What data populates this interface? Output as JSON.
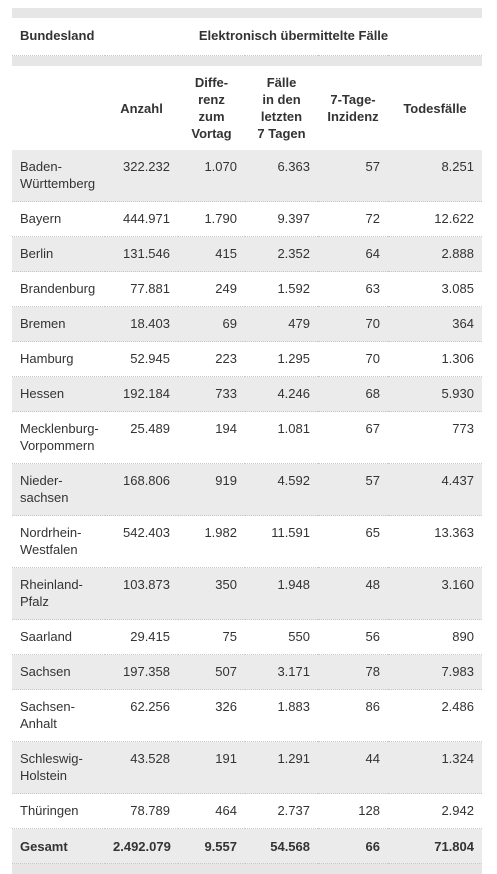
{
  "header": {
    "group_row": [
      "Bundesland",
      "Elektronisch übermittelte Fälle"
    ],
    "columns": [
      "Anzahl",
      "Diffe-\nrenz\nzum\nVortag",
      "Fälle\nin den\nletzten\n7 Tagen",
      "7-Tage-\nInzidenz",
      "Todesfälle"
    ]
  },
  "rows": [
    [
      "Baden-\nWürttemberg",
      "322.232",
      "1.070",
      "6.363",
      "57",
      "8.251"
    ],
    [
      "Bayern",
      "444.971",
      "1.790",
      "9.397",
      "72",
      "12.622"
    ],
    [
      "Berlin",
      "131.546",
      "415",
      "2.352",
      "64",
      "2.888"
    ],
    [
      "Brandenburg",
      "77.881",
      "249",
      "1.592",
      "63",
      "3.085"
    ],
    [
      "Bremen",
      "18.403",
      "69",
      "479",
      "70",
      "364"
    ],
    [
      "Hamburg",
      "52.945",
      "223",
      "1.295",
      "70",
      "1.306"
    ],
    [
      "Hessen",
      "192.184",
      "733",
      "4.246",
      "68",
      "5.930"
    ],
    [
      "Mecklenburg-\nVorpommern",
      "25.489",
      "194",
      "1.081",
      "67",
      "773"
    ],
    [
      "Nieder-\nsachsen",
      "168.806",
      "919",
      "4.592",
      "57",
      "4.437"
    ],
    [
      "Nordrhein-\nWestfalen",
      "542.403",
      "1.982",
      "11.591",
      "65",
      "13.363"
    ],
    [
      "Rheinland-\nPfalz",
      "103.873",
      "350",
      "1.948",
      "48",
      "3.160"
    ],
    [
      "Saarland",
      "29.415",
      "75",
      "550",
      "56",
      "890"
    ],
    [
      "Sachsen",
      "197.358",
      "507",
      "3.171",
      "78",
      "7.983"
    ],
    [
      "Sachsen-\nAnhalt",
      "62.256",
      "326",
      "1.883",
      "86",
      "2.486"
    ],
    [
      "Schleswig-\nHolstein",
      "43.528",
      "191",
      "1.291",
      "44",
      "1.324"
    ],
    [
      "Thüringen",
      "78.789",
      "464",
      "2.737",
      "128",
      "2.942"
    ]
  ],
  "total": [
    "Gesamt",
    "2.492.079",
    "9.557",
    "54.568",
    "66",
    "71.804"
  ]
}
